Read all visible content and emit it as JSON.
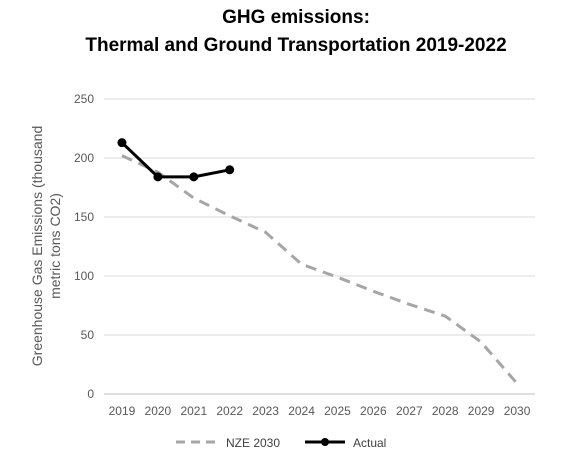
{
  "chart_data": {
    "type": "line",
    "title_line1": "GHG emissions:",
    "title_line2": "Thermal and Ground Transportation 2019-2022",
    "ylabel_line1": "Greenhouse Gas Emissions (thousand",
    "ylabel_line2": "metric tons CO2)",
    "xlabel": "",
    "categories": [
      "2019",
      "2020",
      "2021",
      "2022",
      "2023",
      "2024",
      "2025",
      "2026",
      "2027",
      "2028",
      "2029",
      "2030"
    ],
    "ylim": [
      0,
      250
    ],
    "yticks": [
      "0",
      "50",
      "100",
      "150",
      "200",
      "250"
    ],
    "grid": true,
    "legend_position": "bottom",
    "series": [
      {
        "name": "NZE 2030",
        "style": "dashed",
        "color": "#a6a6a6",
        "values": [
          202,
          188,
          166,
          151,
          137,
          110,
          99,
          87,
          76,
          66,
          44,
          9
        ]
      },
      {
        "name": "Actual",
        "style": "solid-markers",
        "color": "#000000",
        "values": [
          213,
          184,
          184,
          190,
          null,
          null,
          null,
          null,
          null,
          null,
          null,
          null
        ]
      }
    ]
  }
}
